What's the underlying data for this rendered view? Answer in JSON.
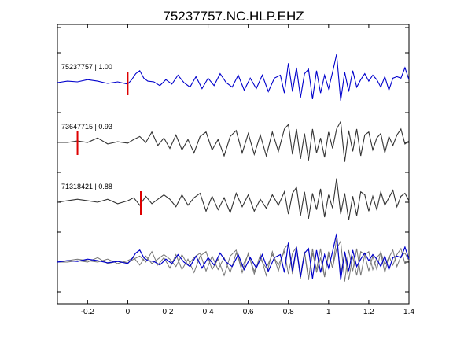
{
  "chart_data": {
    "type": "line",
    "title": "75237757.NC.HLP.EHZ",
    "xlim": [
      -0.35,
      1.4
    ],
    "x_ticks": [
      -0.2,
      0,
      0.2,
      0.4,
      0.6,
      0.8,
      1,
      1.2,
      1.4
    ],
    "x_tick_labels": [
      "-0.2",
      "0",
      "0.2",
      "0.4",
      "0.6",
      "0.8",
      "1",
      "1.2",
      "1.4"
    ],
    "xlabel": "",
    "ylabel": "",
    "grid": false,
    "colors": {
      "reference": "#0000cc",
      "other": "#333333",
      "overlay_other": "#777777",
      "pick": "#dd0000"
    },
    "series": [
      {
        "name": "75237757 | 1.00",
        "pick_time": 0.0,
        "x": [
          -0.35,
          -0.3,
          -0.25,
          -0.2,
          -0.15,
          -0.1,
          -0.05,
          0.0,
          0.02,
          0.04,
          0.06,
          0.08,
          0.1,
          0.13,
          0.16,
          0.19,
          0.22,
          0.25,
          0.28,
          0.31,
          0.34,
          0.37,
          0.4,
          0.43,
          0.46,
          0.49,
          0.52,
          0.55,
          0.58,
          0.61,
          0.64,
          0.67,
          0.7,
          0.73,
          0.76,
          0.78,
          0.8,
          0.82,
          0.84,
          0.86,
          0.88,
          0.9,
          0.92,
          0.94,
          0.96,
          0.98,
          1.0,
          1.02,
          1.04,
          1.06,
          1.08,
          1.1,
          1.12,
          1.14,
          1.16,
          1.18,
          1.2,
          1.22,
          1.24,
          1.26,
          1.28,
          1.3,
          1.32,
          1.34,
          1.36,
          1.38,
          1.4
        ],
        "y": [
          0.0,
          0.1,
          0.05,
          0.2,
          0.1,
          -0.05,
          0.05,
          -0.1,
          0.2,
          0.6,
          0.8,
          0.3,
          0.1,
          0.05,
          -0.2,
          0.2,
          -0.1,
          0.5,
          0.0,
          -0.3,
          0.4,
          -0.4,
          0.3,
          -0.2,
          0.6,
          0.0,
          -0.3,
          0.5,
          -0.5,
          0.3,
          -0.4,
          0.5,
          -0.6,
          0.3,
          0.5,
          -0.7,
          1.3,
          -0.6,
          1.0,
          -1.0,
          0.6,
          0.9,
          -1.1,
          0.8,
          -0.7,
          0.5,
          -0.4,
          0.7,
          1.9,
          -1.2,
          0.7,
          -0.6,
          0.8,
          -0.3,
          0.2,
          0.6,
          0.1,
          0.5,
          0.2,
          -0.3,
          0.4,
          -0.5,
          0.3,
          0.4,
          0.3,
          1.0,
          0.2
        ]
      },
      {
        "name": "73647715 | 0.93",
        "pick_time": -0.25,
        "x": [
          -0.35,
          -0.3,
          -0.25,
          -0.2,
          -0.15,
          -0.1,
          -0.05,
          0.0,
          0.03,
          0.06,
          0.09,
          0.12,
          0.15,
          0.18,
          0.21,
          0.24,
          0.27,
          0.3,
          0.33,
          0.36,
          0.39,
          0.42,
          0.45,
          0.48,
          0.51,
          0.54,
          0.57,
          0.6,
          0.63,
          0.66,
          0.69,
          0.72,
          0.75,
          0.78,
          0.8,
          0.82,
          0.84,
          0.86,
          0.88,
          0.9,
          0.92,
          0.94,
          0.96,
          0.98,
          1.0,
          1.02,
          1.04,
          1.06,
          1.08,
          1.1,
          1.12,
          1.14,
          1.16,
          1.18,
          1.2,
          1.22,
          1.24,
          1.26,
          1.28,
          1.3,
          1.32,
          1.34,
          1.36,
          1.38,
          1.4
        ],
        "y": [
          0.0,
          0.0,
          0.1,
          0.0,
          0.3,
          -0.1,
          0.05,
          -0.05,
          0.2,
          0.4,
          0.0,
          0.7,
          -0.2,
          0.3,
          -0.4,
          0.5,
          -0.5,
          0.2,
          -0.7,
          0.4,
          0.7,
          -0.5,
          0.2,
          -0.9,
          0.4,
          0.8,
          -0.7,
          0.6,
          -0.8,
          0.5,
          -0.9,
          0.7,
          -0.6,
          0.9,
          1.2,
          -0.8,
          0.9,
          -1.1,
          0.6,
          -1.2,
          0.9,
          -0.7,
          0.3,
          -1.0,
          0.7,
          -0.4,
          0.9,
          1.4,
          -1.3,
          0.8,
          -0.6,
          0.9,
          -0.9,
          0.5,
          0.7,
          -0.5,
          0.3,
          0.6,
          -0.7,
          0.4,
          -0.2,
          0.5,
          0.9,
          -0.1,
          0.1
        ]
      },
      {
        "name": "71318421 | 0.88",
        "pick_time": 0.065,
        "x": [
          -0.35,
          -0.3,
          -0.25,
          -0.2,
          -0.15,
          -0.1,
          -0.05,
          0.0,
          0.03,
          0.06,
          0.09,
          0.12,
          0.15,
          0.18,
          0.21,
          0.24,
          0.27,
          0.3,
          0.33,
          0.36,
          0.39,
          0.42,
          0.45,
          0.48,
          0.51,
          0.54,
          0.57,
          0.6,
          0.63,
          0.66,
          0.69,
          0.72,
          0.75,
          0.78,
          0.8,
          0.82,
          0.84,
          0.86,
          0.88,
          0.9,
          0.92,
          0.94,
          0.96,
          0.98,
          1.0,
          1.02,
          1.04,
          1.06,
          1.08,
          1.1,
          1.12,
          1.14,
          1.16,
          1.18,
          1.2,
          1.22,
          1.24,
          1.26,
          1.28,
          1.3,
          1.32,
          1.34,
          1.36,
          1.38,
          1.4
        ],
        "y": [
          0.0,
          0.1,
          0.2,
          0.1,
          0.0,
          0.2,
          -0.1,
          0.1,
          0.3,
          -0.2,
          0.4,
          -0.1,
          0.2,
          0.5,
          0.2,
          -0.3,
          0.5,
          -0.2,
          0.3,
          0.6,
          -0.6,
          0.4,
          -0.5,
          0.3,
          -0.7,
          0.6,
          -0.3,
          0.5,
          -0.6,
          0.2,
          -0.4,
          0.5,
          -0.2,
          0.7,
          -0.8,
          0.6,
          1.0,
          -0.9,
          0.7,
          -1.1,
          0.6,
          -0.5,
          0.9,
          -1.0,
          0.5,
          -0.4,
          1.6,
          -0.8,
          0.6,
          -1.2,
          0.4,
          -0.9,
          0.7,
          0.5,
          -0.6,
          0.4,
          -0.5,
          0.7,
          -0.2,
          0.3,
          0.8,
          -0.3,
          0.4,
          0.6,
          0.1
        ]
      }
    ]
  }
}
